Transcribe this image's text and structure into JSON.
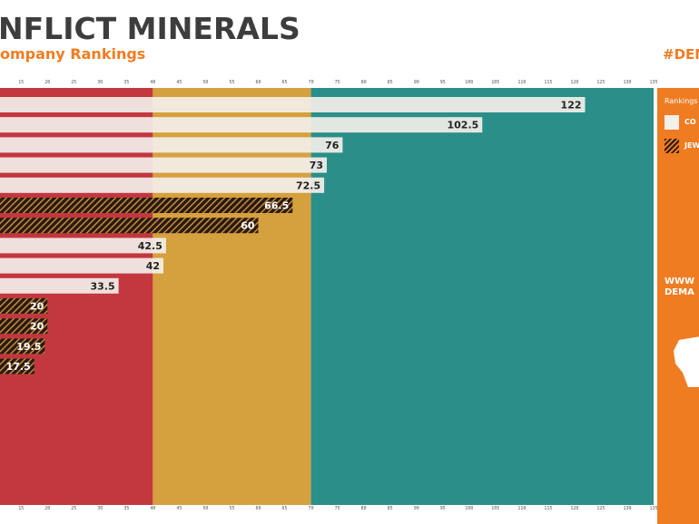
{
  "header": {
    "title": "NFLICT MINERALS",
    "subtitle": "ompany Rankings",
    "hashtag": "#DEMA"
  },
  "legend": {
    "title": "Rankings",
    "items": [
      {
        "label": "CO",
        "pattern": "solid"
      },
      {
        "label": "JEW",
        "pattern": "hatched"
      }
    ],
    "website_lines": [
      "WWW",
      "DEMA"
    ]
  },
  "colors": {
    "band_red": "#c3373f",
    "band_yellow": "#d5a13e",
    "band_teal": "#2a8f88",
    "accent_orange": "#f07c22",
    "bar_light": "#f3efe9",
    "bar_dark": "#2a1a14",
    "title_dark": "#3d3d3d"
  },
  "chart_data": {
    "type": "bar",
    "orientation": "horizontal",
    "title": "Conflict Minerals Company Rankings",
    "x_ticks": [
      15,
      20,
      25,
      30,
      35,
      40,
      45,
      50,
      55,
      60,
      65,
      70,
      75,
      80,
      85,
      90,
      95,
      100,
      105,
      110,
      115,
      120,
      125,
      130,
      135
    ],
    "xlim": [
      11,
      135
    ],
    "bands": [
      {
        "from": 11,
        "to": 40,
        "color": "band_red"
      },
      {
        "from": 40,
        "to": 70,
        "color": "band_yellow"
      },
      {
        "from": 70,
        "to": 135,
        "color": "band_teal"
      }
    ],
    "bars": [
      {
        "value": 122,
        "label": "122",
        "category": "CO"
      },
      {
        "value": 102.5,
        "label": "102.5",
        "category": "CO"
      },
      {
        "value": 76,
        "label": "76",
        "category": "CO"
      },
      {
        "value": 73,
        "label": "73",
        "category": "CO"
      },
      {
        "value": 72.5,
        "label": "72.5",
        "category": "CO"
      },
      {
        "value": 66.5,
        "label": "66.5",
        "category": "JEW"
      },
      {
        "value": 60,
        "label": "60",
        "category": "JEW"
      },
      {
        "value": 42.5,
        "label": "42.5",
        "category": "CO"
      },
      {
        "value": 42,
        "label": "42",
        "category": "CO"
      },
      {
        "value": 33.5,
        "label": "33.5",
        "category": "CO"
      },
      {
        "value": 20,
        "label": "20",
        "category": "JEW"
      },
      {
        "value": 20,
        "label": "20",
        "category": "JEW"
      },
      {
        "value": 19.5,
        "label": "19.5",
        "category": "JEW"
      },
      {
        "value": 17.5,
        "label": "17.5",
        "category": "JEW"
      }
    ]
  }
}
